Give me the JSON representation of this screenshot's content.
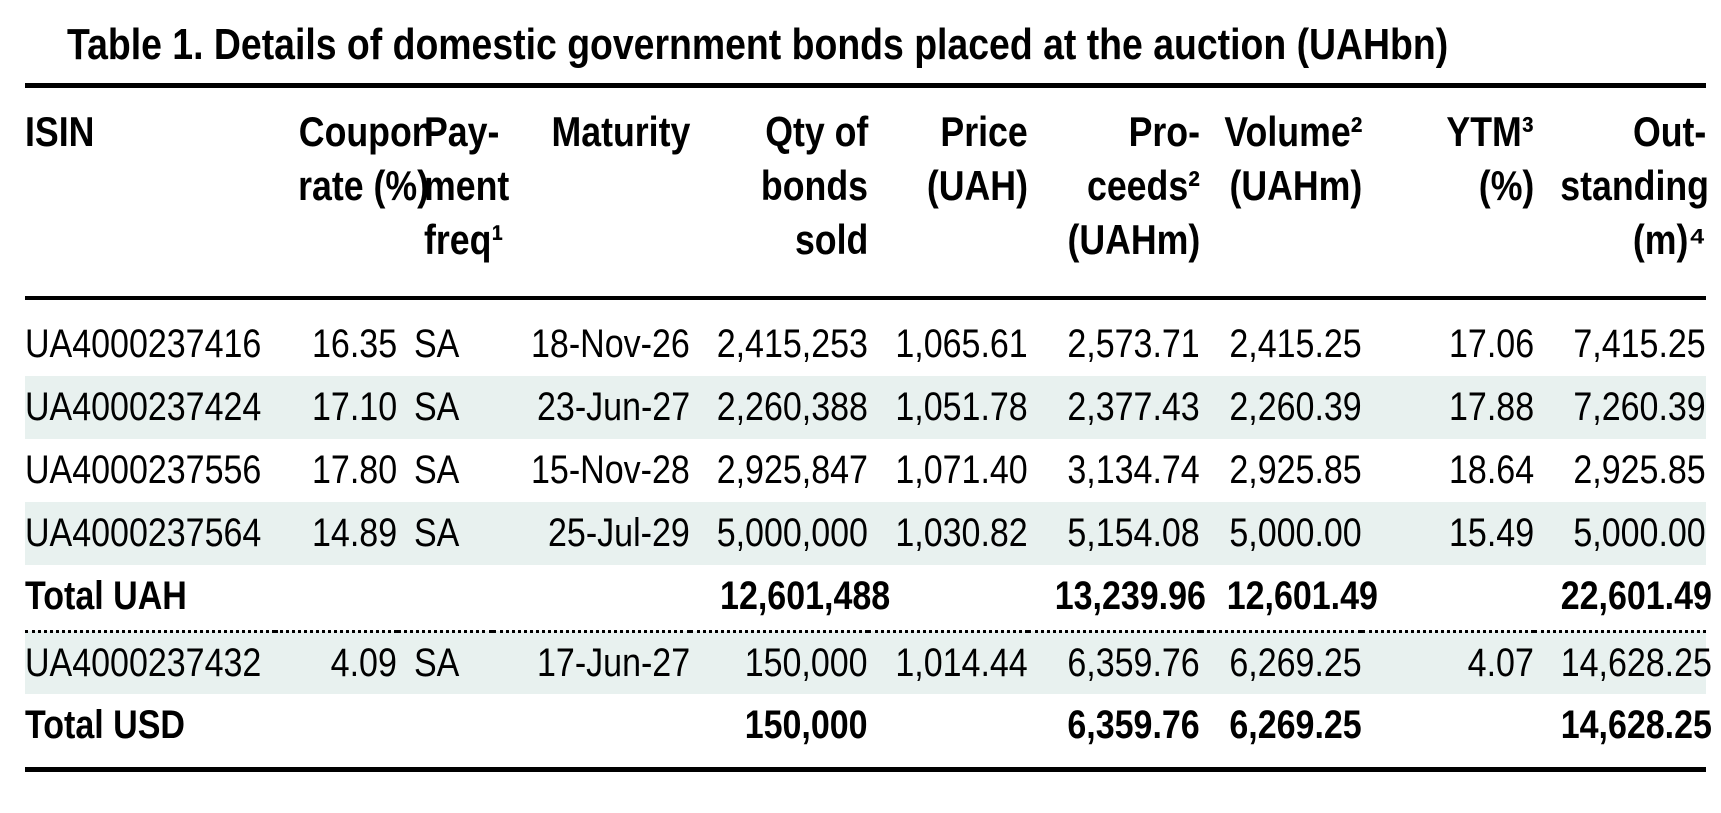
{
  "page": {
    "title": "Table 1. Details of domestic government bonds placed at the auction (UAHbn)"
  },
  "colors": {
    "text": "#000000",
    "rules": "#000000",
    "row_band": "#e8f1ef"
  },
  "table": {
    "columns": [
      {
        "id": "isin",
        "align": "left",
        "label_lines": [
          "ISIN"
        ]
      },
      {
        "id": "coupon_rate",
        "align": "right",
        "label_lines": [
          "Coupon",
          "rate (%)"
        ]
      },
      {
        "id": "payment_freq",
        "align": "left",
        "label_lines": [
          "Pay-",
          "ment",
          "freq¹"
        ]
      },
      {
        "id": "maturity",
        "align": "right",
        "label_lines": [
          "Maturity"
        ]
      },
      {
        "id": "qty_sold",
        "align": "right",
        "label_lines": [
          "Qty of",
          "bonds",
          "sold"
        ]
      },
      {
        "id": "price",
        "align": "right",
        "label_lines": [
          "Price",
          "(UAH)"
        ]
      },
      {
        "id": "proceeds",
        "align": "right",
        "label_lines": [
          "Pro-",
          "ceeds²",
          "(UAHm)"
        ]
      },
      {
        "id": "volume",
        "align": "right",
        "label_lines": [
          "Volume²",
          "(UAHm)"
        ]
      },
      {
        "id": "ytm",
        "align": "right",
        "label_lines": [
          "YTM³",
          "(%)"
        ]
      },
      {
        "id": "outstanding",
        "align": "right",
        "label_lines": [
          "Out-",
          "standing",
          "(m)⁴"
        ]
      }
    ],
    "rows": [
      {
        "type": "bond",
        "shaded": false,
        "cells": [
          "UA4000237416",
          "16.35",
          "SA",
          "18-Nov-26",
          "2,415,253",
          "1,065.61",
          "2,573.71",
          "2,415.25",
          "17.06",
          "7,415.25"
        ]
      },
      {
        "type": "bond",
        "shaded": true,
        "cells": [
          "UA4000237424",
          "17.10",
          "SA",
          "23-Jun-27",
          "2,260,388",
          "1,051.78",
          "2,377.43",
          "2,260.39",
          "17.88",
          "7,260.39"
        ]
      },
      {
        "type": "bond",
        "shaded": false,
        "cells": [
          "UA4000237556",
          "17.80",
          "SA",
          "15-Nov-28",
          "2,925,847",
          "1,071.40",
          "3,134.74",
          "2,925.85",
          "18.64",
          "2,925.85"
        ]
      },
      {
        "type": "bond",
        "shaded": true,
        "cells": [
          "UA4000237564",
          "14.89",
          "SA",
          "25-Jul-29",
          "5,000,000",
          "1,030.82",
          "5,154.08",
          "5,000.00",
          "15.49",
          "5,000.00"
        ]
      },
      {
        "type": "total",
        "shaded": false,
        "cells": [
          "Total UAH",
          "",
          "",
          "",
          "12,601,488",
          "",
          "13,239.96",
          "12,601.49",
          "",
          "22,601.49"
        ]
      },
      {
        "type": "bond",
        "shaded": true,
        "cells": [
          "UA4000237432",
          "4.09",
          "SA",
          "17-Jun-27",
          "150,000",
          "1,014.44",
          "6,359.76",
          "6,269.25",
          "4.07",
          "14,628.25"
        ]
      },
      {
        "type": "total",
        "shaded": false,
        "cells": [
          "Total USD",
          "",
          "",
          "",
          "150,000",
          "",
          "6,359.76",
          "6,269.25",
          "",
          "14,628.25"
        ]
      }
    ]
  }
}
